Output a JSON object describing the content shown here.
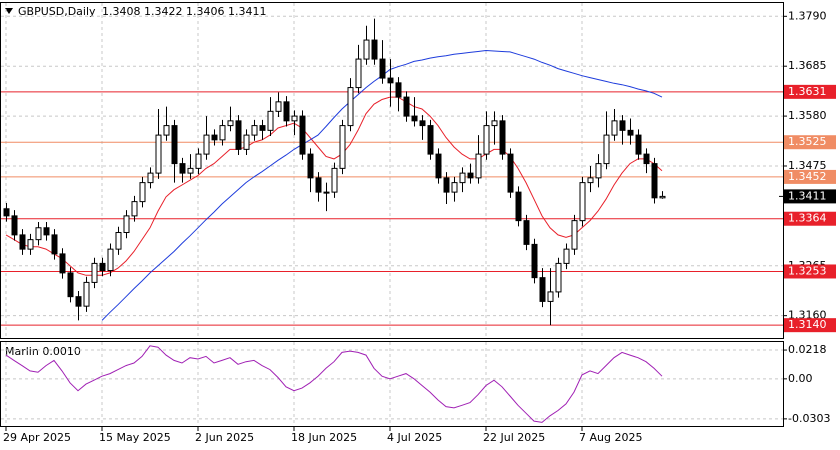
{
  "chart_data": {
    "type": "candlestick",
    "title": "GBPUSD,Daily",
    "categories": [
      "29 Apr 2025",
      null,
      null,
      null,
      null,
      null,
      null,
      null,
      null,
      null,
      null,
      null,
      "15 May 2025",
      null,
      null,
      null,
      null,
      null,
      null,
      null,
      null,
      null,
      null,
      null,
      "2 Jun 2025",
      null,
      null,
      null,
      null,
      null,
      null,
      null,
      null,
      null,
      null,
      null,
      "18 Jun 2025",
      null,
      null,
      null,
      null,
      null,
      null,
      null,
      null,
      null,
      null,
      null,
      "4 Jul 2025",
      null,
      null,
      null,
      null,
      null,
      null,
      null,
      null,
      null,
      null,
      null,
      "22 Jul 2025",
      null,
      null,
      null,
      null,
      null,
      null,
      null,
      null,
      null,
      null,
      null,
      "7 Aug 2025",
      null,
      null,
      null,
      null,
      null,
      null,
      null,
      null,
      null,
      null
    ],
    "open": [
      1.3385,
      1.337,
      1.333,
      1.33,
      1.332,
      1.3345,
      1.333,
      1.329,
      1.325,
      1.32,
      1.318,
      1.323,
      1.327,
      1.3255,
      1.33,
      1.3335,
      1.337,
      1.34,
      1.344,
      1.346,
      1.354,
      1.356,
      1.348,
      1.346,
      1.347,
      1.35,
      1.354,
      1.353,
      1.356,
      1.357,
      1.351,
      1.354,
      1.356,
      1.355,
      1.359,
      1.361,
      1.357,
      1.358,
      1.35,
      1.345,
      1.342,
      1.342,
      1.347,
      1.356,
      1.364,
      1.37,
      1.374,
      1.37,
      1.366,
      1.365,
      1.362,
      1.358,
      1.357,
      1.356,
      1.35,
      1.345,
      1.342,
      1.344,
      1.346,
      1.345,
      1.35,
      1.356,
      1.357,
      1.35,
      1.342,
      1.336,
      1.331,
      1.324,
      1.319,
      1.321,
      1.327,
      1.33,
      1.336,
      1.344,
      1.345,
      1.348,
      1.354,
      1.357,
      1.355,
      1.354,
      1.35,
      1.348,
      1.3408
    ],
    "high": [
      1.3397,
      1.3382,
      1.3342,
      1.3332,
      1.3357,
      1.3357,
      1.3342,
      1.3302,
      1.3262,
      1.3212,
      1.3242,
      1.3282,
      1.3282,
      1.3312,
      1.3347,
      1.3382,
      1.3412,
      1.3452,
      1.3472,
      1.3595,
      1.36,
      1.3572,
      1.3492,
      1.35,
      1.3512,
      1.358,
      1.3552,
      1.3572,
      1.36,
      1.3582,
      1.3552,
      1.3572,
      1.3572,
      1.362,
      1.363,
      1.3622,
      1.3592,
      1.3592,
      1.3512,
      1.3462,
      1.344,
      1.3482,
      1.3572,
      1.366,
      1.373,
      1.377,
      1.3785,
      1.374,
      1.37,
      1.3662,
      1.3632,
      1.362,
      1.3582,
      1.3572,
      1.3512,
      1.3462,
      1.3452,
      1.3472,
      1.348,
      1.354,
      1.359,
      1.359,
      1.3582,
      1.3512,
      1.3432,
      1.3372,
      1.3322,
      1.326,
      1.326,
      1.3282,
      1.3312,
      1.3372,
      1.3452,
      1.3475,
      1.35,
      1.359,
      1.3595,
      1.3582,
      1.3575,
      1.3552,
      1.3512,
      1.3492,
      1.3422
    ],
    "low": [
      1.3358,
      1.3318,
      1.3288,
      1.3288,
      1.3308,
      1.3318,
      1.3278,
      1.3238,
      1.3188,
      1.315,
      1.3168,
      1.3218,
      1.3243,
      1.3243,
      1.3288,
      1.3323,
      1.3358,
      1.3388,
      1.3428,
      1.3448,
      1.3528,
      1.344,
      1.344,
      1.3448,
      1.3458,
      1.3488,
      1.3518,
      1.3518,
      1.3548,
      1.3498,
      1.3498,
      1.3528,
      1.353,
      1.3538,
      1.3578,
      1.3558,
      1.354,
      1.3488,
      1.342,
      1.34,
      1.338,
      1.3408,
      1.3458,
      1.3548,
      1.3628,
      1.3688,
      1.3688,
      1.3648,
      1.36,
      1.359,
      1.3568,
      1.3558,
      1.353,
      1.3488,
      1.3438,
      1.3395,
      1.34,
      1.342,
      1.3438,
      1.3438,
      1.3488,
      1.352,
      1.3488,
      1.3408,
      1.3348,
      1.3298,
      1.3228,
      1.3178,
      1.314,
      1.3198,
      1.3258,
      1.3288,
      1.3348,
      1.342,
      1.343,
      1.3468,
      1.3528,
      1.352,
      1.352,
      1.3488,
      1.346,
      1.3396,
      1.3406
    ],
    "close": [
      1.337,
      1.333,
      1.33,
      1.332,
      1.3345,
      1.333,
      1.329,
      1.325,
      1.32,
      1.318,
      1.323,
      1.327,
      1.3255,
      1.33,
      1.3335,
      1.337,
      1.34,
      1.344,
      1.346,
      1.354,
      1.356,
      1.348,
      1.346,
      1.347,
      1.35,
      1.354,
      1.353,
      1.356,
      1.357,
      1.351,
      1.354,
      1.356,
      1.355,
      1.359,
      1.361,
      1.357,
      1.358,
      1.35,
      1.345,
      1.342,
      1.342,
      1.347,
      1.356,
      1.364,
      1.37,
      1.374,
      1.37,
      1.366,
      1.365,
      1.362,
      1.358,
      1.357,
      1.356,
      1.35,
      1.345,
      1.342,
      1.344,
      1.346,
      1.345,
      1.35,
      1.356,
      1.357,
      1.35,
      1.342,
      1.336,
      1.331,
      1.324,
      1.319,
      1.321,
      1.327,
      1.33,
      1.336,
      1.344,
      1.345,
      1.348,
      1.354,
      1.357,
      1.355,
      1.354,
      1.35,
      1.348,
      1.3408,
      1.3411
    ],
    "up_color": "#ffffff",
    "down_color": "#000000",
    "overlays": [
      {
        "color": "#e8202a",
        "values": [
          1.333,
          1.332,
          1.331,
          1.3305,
          1.3305,
          1.33,
          1.329,
          1.328,
          1.3265,
          1.325,
          1.3245,
          1.3245,
          1.3245,
          1.325,
          1.326,
          1.3275,
          1.3295,
          1.332,
          1.3345,
          1.338,
          1.341,
          1.3425,
          1.3435,
          1.3445,
          1.3455,
          1.347,
          1.348,
          1.3495,
          1.351,
          1.351,
          1.3515,
          1.3525,
          1.353,
          1.354,
          1.3555,
          1.356,
          1.3565,
          1.3555,
          1.3535,
          1.3515,
          1.3495,
          1.349,
          1.35,
          1.352,
          1.355,
          1.3585,
          1.3605,
          1.3615,
          1.362,
          1.362,
          1.361,
          1.36,
          1.3595,
          1.358,
          1.356,
          1.3535,
          1.3515,
          1.35,
          1.349,
          1.349,
          1.35,
          1.351,
          1.351,
          1.3495,
          1.347,
          1.344,
          1.3405,
          1.337,
          1.3345,
          1.333,
          1.3325,
          1.333,
          1.3345,
          1.336,
          1.338,
          1.3405,
          1.3435,
          1.346,
          1.348,
          1.349,
          1.349,
          1.348,
          1.3465
        ]
      },
      {
        "color": "#1e3cdc",
        "values": [
          null,
          null,
          null,
          null,
          null,
          null,
          null,
          null,
          null,
          null,
          null,
          null,
          1.315,
          1.3167,
          1.3183,
          1.32,
          1.3217,
          1.3233,
          1.325,
          1.3265,
          1.328,
          1.3295,
          1.3312,
          1.3328,
          1.3345,
          1.3362,
          1.3378,
          1.3395,
          1.341,
          1.3425,
          1.344,
          1.3452,
          1.3463,
          1.3475,
          1.3487,
          1.3498,
          1.351,
          1.352,
          1.353,
          1.354,
          1.3558,
          1.3577,
          1.3595,
          1.361,
          1.3625,
          1.364,
          1.3653,
          1.3665,
          1.3678,
          1.3684,
          1.3689,
          1.3695,
          1.3698,
          1.3702,
          1.3705,
          1.3707,
          1.371,
          1.3712,
          1.3714,
          1.3716,
          1.3718,
          1.3717,
          1.3716,
          1.3715,
          1.371,
          1.3705,
          1.37,
          1.3693,
          1.3687,
          1.368,
          1.3675,
          1.367,
          1.3665,
          1.3661,
          1.3657,
          1.3653,
          1.3649,
          1.3646,
          1.3642,
          1.3637,
          1.3633,
          1.3628,
          1.362
        ]
      }
    ],
    "ylim": [
      1.3113,
      1.3818
    ],
    "yticks": [
      {
        "value": 1.379,
        "label": "1.3790"
      },
      1.3685,
      {
        "value": 1.358,
        "label": "1.3580"
      },
      1.3475,
      1.3265,
      {
        "value": 1.316,
        "label": "1.3160"
      }
    ],
    "levels": [
      1.3631,
      1.3525,
      1.3452,
      1.3364,
      1.3253,
      {
        "value": 1.314,
        "label": "1.3140"
      }
    ],
    "level_colors": [
      "#e8202a",
      "#f08c64",
      "#f08c64",
      "#e8202a",
      "#e8202a",
      "#e8202a"
    ],
    "last_price_color": "#000000",
    "grid": true,
    "oscillator": {
      "name": "Marlin 0.0010",
      "color": "#a020b4",
      "values": [
        0.018,
        0.014,
        0.01,
        0.006,
        0.005,
        0.01,
        0.014,
        0.006,
        -0.003,
        -0.009,
        -0.004,
        -0.001,
        0.002,
        0.004,
        0.007,
        0.01,
        0.012,
        0.017,
        0.025,
        0.024,
        0.018,
        0.014,
        0.012,
        0.016,
        0.015,
        0.017,
        0.012,
        0.014,
        0.016,
        0.011,
        0.013,
        0.014,
        0.01,
        0.007,
        0.001,
        -0.006,
        -0.009,
        -0.007,
        -0.003,
        0.002,
        0.008,
        0.013,
        0.02,
        0.021,
        0.02,
        0.018,
        0.008,
        0.002,
        0.0,
        0.002,
        0.004,
        0.0,
        -0.005,
        -0.01,
        -0.016,
        -0.021,
        -0.022,
        -0.02,
        -0.018,
        -0.012,
        -0.005,
        -0.001,
        -0.006,
        -0.013,
        -0.02,
        -0.026,
        -0.032,
        -0.033,
        -0.028,
        -0.024,
        -0.019,
        -0.01,
        0.003,
        0.006,
        0.004,
        0.01,
        0.016,
        0.02,
        0.018,
        0.016,
        0.013,
        0.008,
        0.002
      ],
      "ylim": [
        -0.0357,
        0.0279
      ],
      "yticks": [
        0.0218,
        {
          "value": 0,
          "label": "0.00"
        },
        -0.0303
      ]
    }
  }
}
